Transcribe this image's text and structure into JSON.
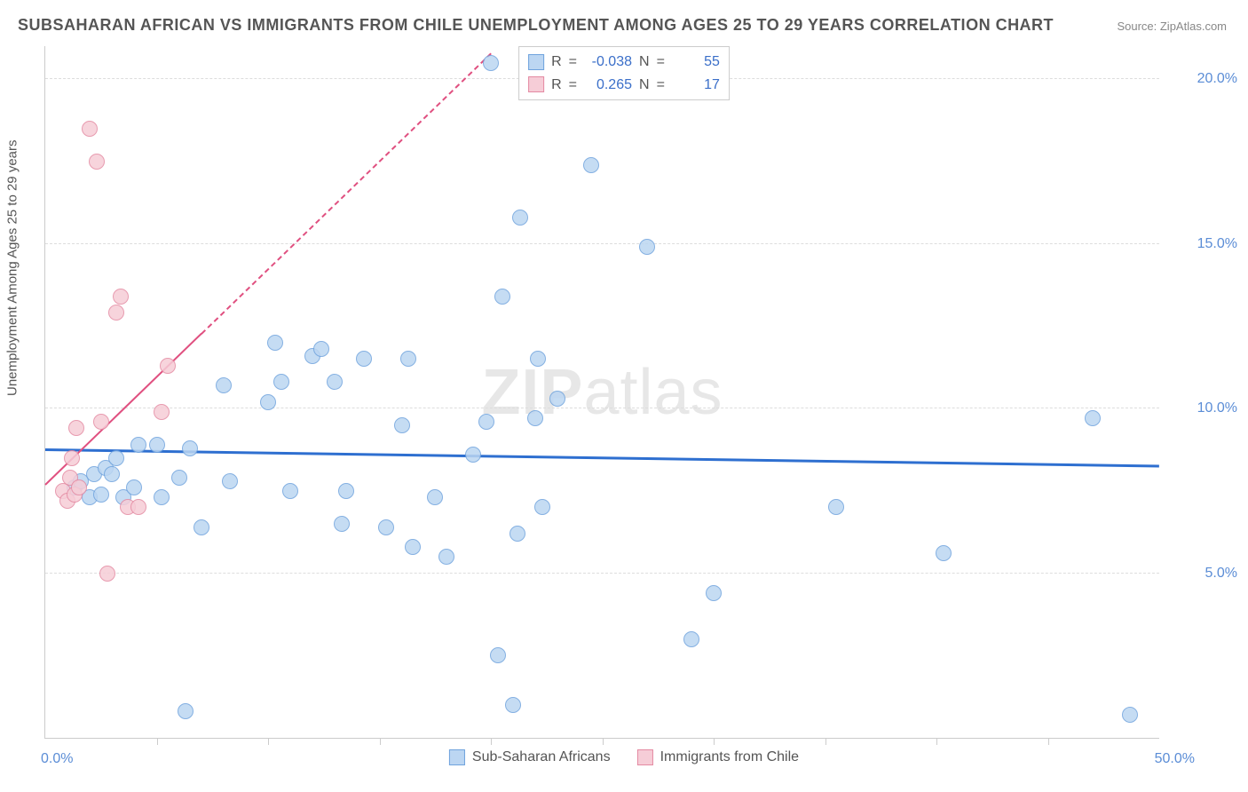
{
  "title": "SUBSAHARAN AFRICAN VS IMMIGRANTS FROM CHILE UNEMPLOYMENT AMONG AGES 25 TO 29 YEARS CORRELATION CHART",
  "source": "Source: ZipAtlas.com",
  "y_axis_label": "Unemployment Among Ages 25 to 29 years",
  "watermark_bold": "ZIP",
  "watermark_thin": "atlas",
  "chart": {
    "type": "scatter",
    "xlim": [
      0,
      50
    ],
    "ylim": [
      0,
      21
    ],
    "x_tick_step": 5,
    "x_min_label": "0.0%",
    "x_max_label": "50.0%",
    "y_ticks": [
      5,
      10,
      15,
      20
    ],
    "y_tick_labels": [
      "5.0%",
      "10.0%",
      "15.0%",
      "20.0%"
    ],
    "background_color": "#ffffff",
    "grid_color": "#dddddd",
    "axis_color": "#cccccc",
    "marker_radius": 9,
    "marker_stroke_width": 1,
    "series": [
      {
        "name": "Sub-Saharan Africans",
        "fill_color": "#bcd6f2",
        "stroke_color": "#6fa3dd",
        "R": "-0.038",
        "N": "55",
        "trend": {
          "x1": 0,
          "y1": 8.8,
          "x2": 50,
          "y2": 8.3,
          "color": "#2e6fd0",
          "width": 2.5,
          "dash_from_x": null
        },
        "points": [
          [
            1.3,
            7.6
          ],
          [
            1.6,
            7.8
          ],
          [
            2.0,
            7.3
          ],
          [
            2.2,
            8.0
          ],
          [
            2.5,
            7.4
          ],
          [
            2.7,
            8.2
          ],
          [
            3.0,
            8.0
          ],
          [
            3.2,
            8.5
          ],
          [
            3.5,
            7.3
          ],
          [
            4.0,
            7.6
          ],
          [
            4.2,
            8.9
          ],
          [
            5.0,
            8.9
          ],
          [
            5.2,
            7.3
          ],
          [
            6.0,
            7.9
          ],
          [
            6.5,
            8.8
          ],
          [
            6.3,
            0.8
          ],
          [
            7.0,
            6.4
          ],
          [
            8.0,
            10.7
          ],
          [
            8.3,
            7.8
          ],
          [
            10.0,
            10.2
          ],
          [
            10.3,
            12.0
          ],
          [
            10.6,
            10.8
          ],
          [
            11.0,
            7.5
          ],
          [
            12.0,
            11.6
          ],
          [
            12.4,
            11.8
          ],
          [
            13.0,
            10.8
          ],
          [
            13.3,
            6.5
          ],
          [
            13.5,
            7.5
          ],
          [
            14.3,
            11.5
          ],
          [
            15.3,
            6.4
          ],
          [
            16.0,
            9.5
          ],
          [
            16.3,
            11.5
          ],
          [
            16.5,
            5.8
          ],
          [
            17.5,
            7.3
          ],
          [
            18.0,
            5.5
          ],
          [
            19.2,
            8.6
          ],
          [
            19.8,
            9.6
          ],
          [
            20.0,
            20.5
          ],
          [
            20.3,
            2.5
          ],
          [
            20.5,
            13.4
          ],
          [
            21.0,
            1.0
          ],
          [
            21.2,
            6.2
          ],
          [
            21.3,
            15.8
          ],
          [
            22.0,
            9.7
          ],
          [
            22.1,
            11.5
          ],
          [
            22.3,
            7.0
          ],
          [
            23.0,
            10.3
          ],
          [
            24.5,
            17.4
          ],
          [
            27.0,
            14.9
          ],
          [
            29.0,
            3.0
          ],
          [
            30.0,
            4.4
          ],
          [
            35.5,
            7.0
          ],
          [
            40.3,
            5.6
          ],
          [
            47.0,
            9.7
          ],
          [
            48.7,
            0.7
          ]
        ]
      },
      {
        "name": "Immigrants from Chile",
        "fill_color": "#f6cdd7",
        "stroke_color": "#e48aa2",
        "R": "0.265",
        "N": "17",
        "trend": {
          "x1": 0,
          "y1": 7.7,
          "x2": 20,
          "y2": 20.8,
          "color": "#e05080",
          "width": 2,
          "dash_from_x": 7
        },
        "points": [
          [
            0.8,
            7.5
          ],
          [
            1.0,
            7.2
          ],
          [
            1.1,
            7.9
          ],
          [
            1.2,
            8.5
          ],
          [
            1.3,
            7.4
          ],
          [
            1.4,
            9.4
          ],
          [
            1.5,
            7.6
          ],
          [
            2.0,
            18.5
          ],
          [
            2.3,
            17.5
          ],
          [
            2.5,
            9.6
          ],
          [
            2.8,
            5.0
          ],
          [
            3.2,
            12.9
          ],
          [
            3.4,
            13.4
          ],
          [
            3.7,
            7.0
          ],
          [
            5.2,
            9.9
          ],
          [
            5.5,
            11.3
          ],
          [
            4.2,
            7.0
          ]
        ]
      }
    ],
    "legend_top": {
      "R_label": "R",
      "N_label": "N",
      "eq": "="
    },
    "legend_bottom": [
      {
        "label": "Sub-Saharan Africans",
        "fill": "#bcd6f2",
        "stroke": "#6fa3dd"
      },
      {
        "label": "Immigrants from Chile",
        "fill": "#f6cdd7",
        "stroke": "#e48aa2"
      }
    ]
  }
}
